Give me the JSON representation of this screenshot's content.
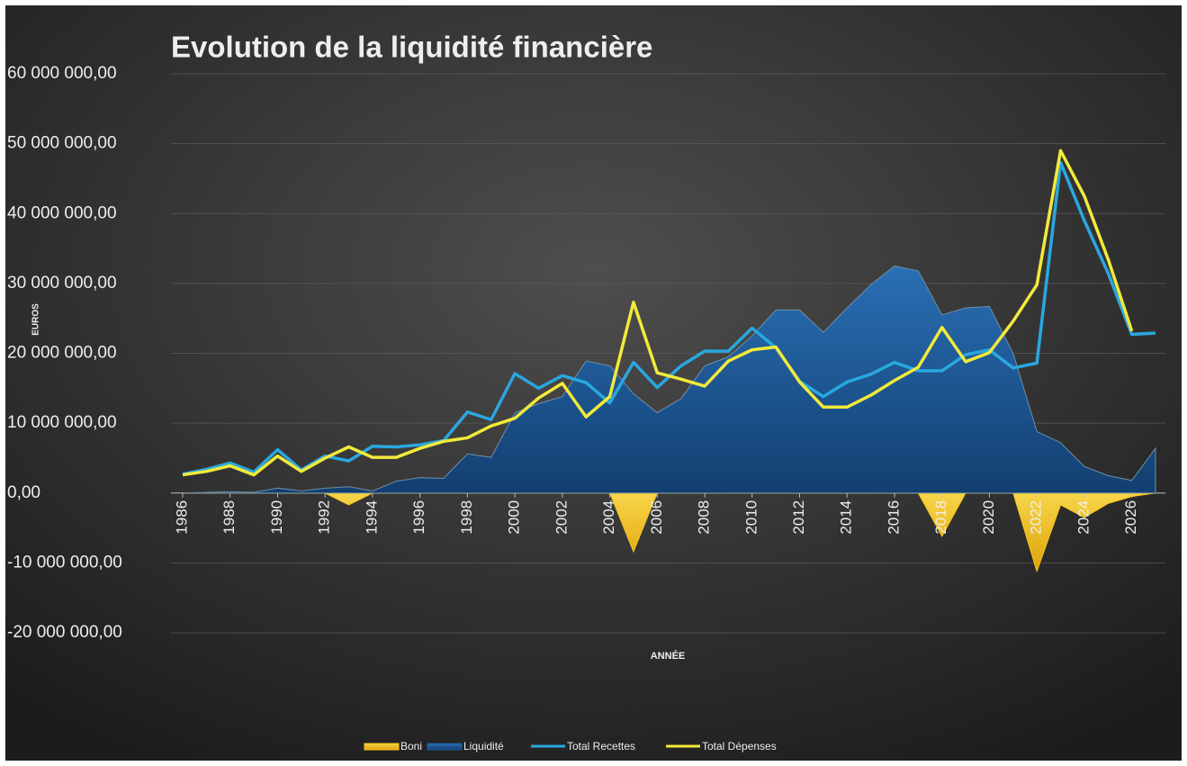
{
  "chart_data": {
    "type": "line",
    "title": "Evolution de la liquidité financière",
    "y_label": "EUROS",
    "x_label": "ANNÉE",
    "x": [
      1986,
      1987,
      1988,
      1989,
      1990,
      1991,
      1992,
      1993,
      1994,
      1995,
      1996,
      1997,
      1998,
      1999,
      2000,
      2001,
      2002,
      2003,
      2004,
      2005,
      2006,
      2007,
      2008,
      2009,
      2010,
      2011,
      2012,
      2013,
      2014,
      2015,
      2016,
      2017,
      2018,
      2019,
      2020,
      2021,
      2022,
      2023,
      2024,
      2025,
      2026,
      2027
    ],
    "xlim": [
      1986,
      2027
    ],
    "xticks": [
      1986,
      1988,
      1990,
      1992,
      1994,
      1996,
      1998,
      2000,
      2002,
      2004,
      2006,
      2008,
      2010,
      2012,
      2014,
      2016,
      2018,
      2020,
      2022,
      2024,
      2026
    ],
    "ylim": [
      -20000000,
      60000000
    ],
    "yticks": [
      {
        "value": -20000000,
        "label": "-20 000 000,00"
      },
      {
        "value": -10000000,
        "label": "-10 000 000,00"
      },
      {
        "value": 0,
        "label": "0,00"
      },
      {
        "value": 10000000,
        "label": "10 000 000,00"
      },
      {
        "value": 20000000,
        "label": "20 000 000,00"
      },
      {
        "value": 30000000,
        "label": "30 000 000,00"
      },
      {
        "value": 40000000,
        "label": "40 000 000,00"
      },
      {
        "value": 50000000,
        "label": "50 000 000,00"
      },
      {
        "value": 60000000,
        "label": "60 000 000,00"
      }
    ],
    "grid": true,
    "legend": "bottom",
    "series": [
      {
        "name": "Boni",
        "kind": "area",
        "color": "#f5c518",
        "values": [
          0,
          0,
          0,
          0,
          0,
          0,
          0,
          -1700000,
          0,
          0,
          0,
          0,
          0,
          0,
          0,
          0,
          0,
          0,
          0,
          -8400000,
          0,
          0,
          0,
          0,
          0,
          0,
          0,
          0,
          0,
          0,
          0,
          0,
          -6200000,
          0,
          0,
          0,
          -11200000,
          -1700000,
          -3500000,
          -1500000,
          -500000,
          0
        ]
      },
      {
        "name": "Liquidité",
        "kind": "area",
        "color": "#1f5c99",
        "values": [
          0,
          100000,
          200000,
          100000,
          700000,
          300000,
          700000,
          900000,
          300000,
          1700000,
          2200000,
          2100000,
          5600000,
          5100000,
          11500000,
          12800000,
          13800000,
          18900000,
          18200000,
          14200000,
          11500000,
          13500000,
          18200000,
          19500000,
          22500000,
          26200000,
          26200000,
          23000000,
          26500000,
          29800000,
          32500000,
          31800000,
          25500000,
          26500000,
          26700000,
          20000000,
          8800000,
          7200000,
          3800000,
          2500000,
          1800000,
          6400000
        ]
      },
      {
        "name": "Total Recettes",
        "kind": "line",
        "color": "#2aa7df",
        "values": [
          2700000,
          3400000,
          4300000,
          3000000,
          6200000,
          3300000,
          5300000,
          4600000,
          6700000,
          6600000,
          6900000,
          7500000,
          11600000,
          10500000,
          17100000,
          15000000,
          16800000,
          15800000,
          12900000,
          18700000,
          15100000,
          18200000,
          20300000,
          20300000,
          23600000,
          20800000,
          16000000,
          13800000,
          15900000,
          17000000,
          18700000,
          17500000,
          17500000,
          19800000,
          20500000,
          17900000,
          18600000,
          47300000,
          39000000,
          31500000,
          22700000,
          22900000
        ]
      },
      {
        "name": "Total Dépenses",
        "kind": "line",
        "color": "#f2ea3a",
        "values": [
          2600000,
          3100000,
          3900000,
          2600000,
          5300000,
          3100000,
          5000000,
          6600000,
          5100000,
          5100000,
          6400000,
          7400000,
          7900000,
          9600000,
          10700000,
          13600000,
          15700000,
          10900000,
          13800000,
          27300000,
          17200000,
          16300000,
          15300000,
          18900000,
          20500000,
          20900000,
          15900000,
          12300000,
          12300000,
          14000000,
          16100000,
          18000000,
          23700000,
          18800000,
          20100000,
          24600000,
          29800000,
          49000000,
          42500000,
          33500000,
          23200000,
          null
        ]
      }
    ]
  }
}
